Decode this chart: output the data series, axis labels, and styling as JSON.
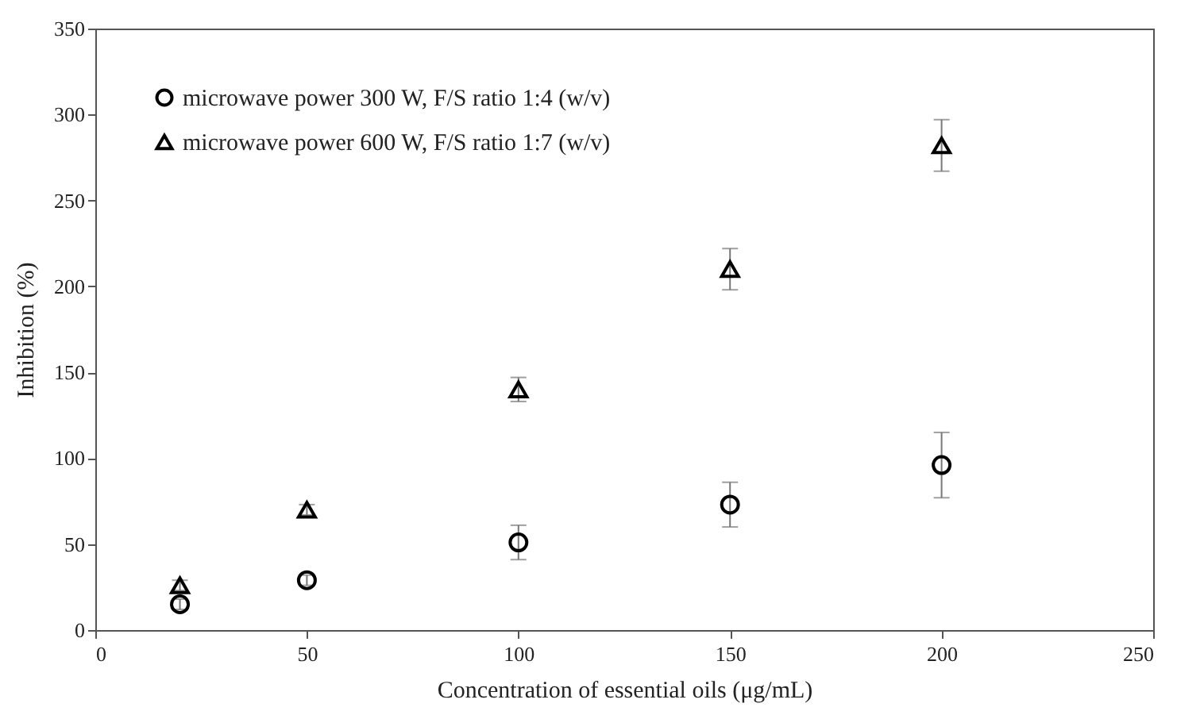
{
  "chart_data": {
    "type": "scatter",
    "xlabel": "Concentration of essential oils (μg/mL)",
    "ylabel": "Inhibition (%)",
    "x": [
      20,
      50,
      100,
      150,
      200
    ],
    "series": [
      {
        "name": "microwave power 300 W, F/S ratio 1:4 (w/v)",
        "color": "#000000",
        "marker": "circle",
        "values": [
          15,
          29,
          51,
          73,
          96
        ],
        "errors": [
          3,
          3,
          10,
          13,
          19
        ]
      },
      {
        "name": "microwave power 600 W, F/S ratio 1:7 (w/v)",
        "color": "#000000",
        "marker": "triangle",
        "values": [
          26,
          70,
          140,
          210,
          282
        ],
        "errors": [
          3,
          3,
          7,
          12,
          15
        ]
      }
    ],
    "xlim": [
      0,
      250
    ],
    "xticks": [
      0,
      50,
      100,
      150,
      200,
      250
    ],
    "ylim": [
      0,
      350
    ],
    "yticks": [
      0,
      50,
      100,
      150,
      200,
      250,
      300,
      350
    ],
    "grid": false,
    "legend": "top left"
  }
}
